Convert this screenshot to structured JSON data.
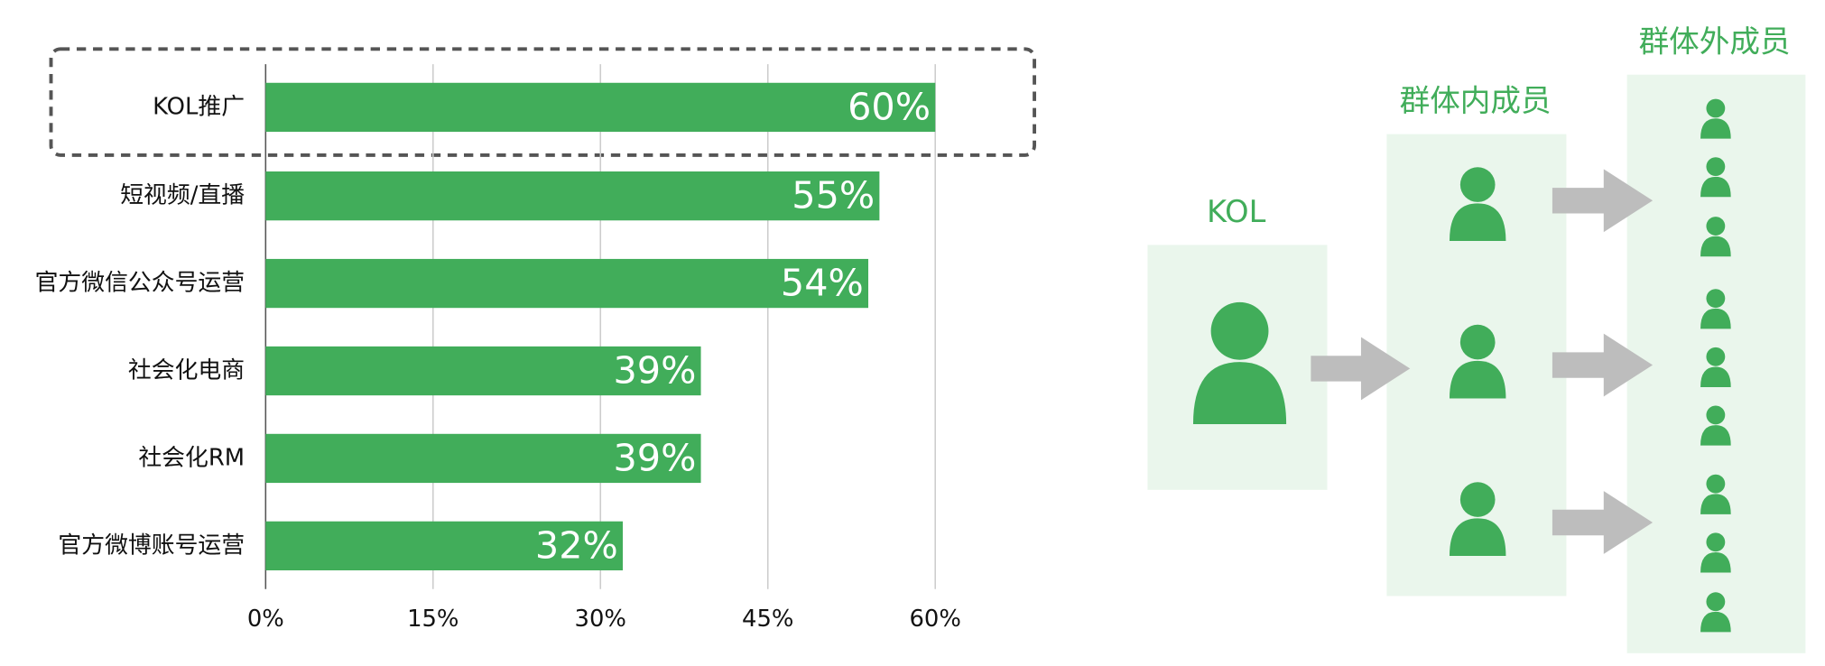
{
  "chart_data": {
    "type": "bar",
    "orientation": "horizontal",
    "categories": [
      "KOL推广",
      "短视频/直播",
      "官方微信公众号运营",
      "社会化电商",
      "社会化RM",
      "官方微博账号运营"
    ],
    "values": [
      60,
      55,
      54,
      39,
      39,
      32
    ],
    "value_labels": [
      "60%",
      "55%",
      "54%",
      "39%",
      "39%",
      "32%"
    ],
    "color": "#41ad5a",
    "xlim": [
      0,
      60
    ],
    "xticks": [
      {
        "value": 0,
        "label": "0%"
      },
      {
        "value": 15,
        "label": "15%"
      },
      {
        "value": 30,
        "label": "30%"
      },
      {
        "value": 45,
        "label": "45%"
      },
      {
        "value": 60,
        "label": "60%"
      }
    ],
    "grid": true
  },
  "diagram": {
    "kol": "KOL",
    "inner": "群体内成员",
    "outer": "群体外成员"
  }
}
